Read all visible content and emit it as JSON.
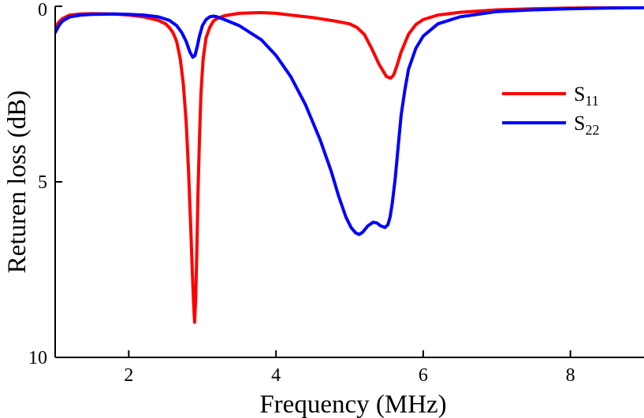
{
  "chart_data": {
    "type": "line",
    "title": "",
    "xlabel": "Frequency (MHz)",
    "ylabel": "Returen loss  (dB)",
    "xlim": [
      1,
      9
    ],
    "ylim": [
      0,
      10
    ],
    "y_inverted": true,
    "xticks": [
      2,
      4,
      6,
      8
    ],
    "yticks": [
      0,
      5,
      10
    ],
    "grid": false,
    "legend_position": "right",
    "series": [
      {
        "name": "S",
        "subscript": "11",
        "color": "#ff0000",
        "x": [
          1.0,
          1.05,
          1.1,
          1.2,
          1.35,
          1.5,
          1.8,
          2.0,
          2.2,
          2.4,
          2.5,
          2.55,
          2.6,
          2.65,
          2.7,
          2.74,
          2.78,
          2.81,
          2.84,
          2.86,
          2.88,
          2.895,
          2.91,
          2.925,
          2.94,
          2.96,
          2.98,
          3.01,
          3.05,
          3.1,
          3.15,
          3.2,
          3.3,
          3.5,
          3.8,
          4.0,
          4.2,
          4.5,
          4.8,
          5.0,
          5.1,
          5.2,
          5.3,
          5.4,
          5.5,
          5.56,
          5.6,
          5.65,
          5.7,
          5.8,
          5.9,
          6.0,
          6.2,
          6.5,
          7.0,
          7.5,
          8.0,
          8.5,
          9.0
        ],
        "y": [
          0.6,
          0.45,
          0.35,
          0.25,
          0.22,
          0.21,
          0.22,
          0.25,
          0.3,
          0.4,
          0.5,
          0.6,
          0.75,
          1.0,
          1.5,
          2.2,
          3.3,
          4.6,
          6.2,
          7.4,
          8.4,
          9.0,
          8.3,
          7.0,
          5.4,
          3.8,
          2.5,
          1.5,
          0.9,
          0.6,
          0.42,
          0.35,
          0.27,
          0.2,
          0.18,
          0.2,
          0.25,
          0.32,
          0.42,
          0.5,
          0.6,
          0.8,
          1.2,
          1.65,
          2.0,
          2.05,
          1.95,
          1.65,
          1.3,
          0.8,
          0.52,
          0.38,
          0.25,
          0.17,
          0.1,
          0.07,
          0.05,
          0.04,
          0.03
        ]
      },
      {
        "name": "S",
        "subscript": "22",
        "color": "#0000ff",
        "x": [
          1.0,
          1.05,
          1.1,
          1.2,
          1.35,
          1.5,
          1.8,
          2.0,
          2.2,
          2.4,
          2.55,
          2.65,
          2.72,
          2.78,
          2.83,
          2.87,
          2.9,
          2.93,
          2.96,
          3.0,
          3.05,
          3.1,
          3.15,
          3.2,
          3.3,
          3.5,
          3.8,
          4.0,
          4.2,
          4.4,
          4.6,
          4.75,
          4.85,
          4.95,
          5.02,
          5.08,
          5.13,
          5.18,
          5.25,
          5.32,
          5.37,
          5.42,
          5.48,
          5.52,
          5.55,
          5.58,
          5.62,
          5.66,
          5.7,
          5.75,
          5.8,
          5.9,
          6.0,
          6.2,
          6.5,
          7.0,
          7.5,
          8.0,
          8.5,
          9.0
        ],
        "y": [
          0.75,
          0.55,
          0.42,
          0.3,
          0.25,
          0.23,
          0.22,
          0.23,
          0.25,
          0.3,
          0.4,
          0.55,
          0.75,
          1.0,
          1.3,
          1.45,
          1.4,
          1.15,
          0.85,
          0.55,
          0.38,
          0.3,
          0.28,
          0.3,
          0.38,
          0.55,
          0.95,
          1.4,
          2.0,
          2.8,
          3.8,
          4.7,
          5.4,
          6.0,
          6.3,
          6.45,
          6.5,
          6.43,
          6.25,
          6.15,
          6.17,
          6.25,
          6.3,
          6.22,
          6.0,
          5.6,
          4.9,
          4.0,
          3.1,
          2.4,
          1.8,
          1.2,
          0.85,
          0.5,
          0.3,
          0.15,
          0.1,
          0.07,
          0.05,
          0.04
        ]
      }
    ]
  }
}
